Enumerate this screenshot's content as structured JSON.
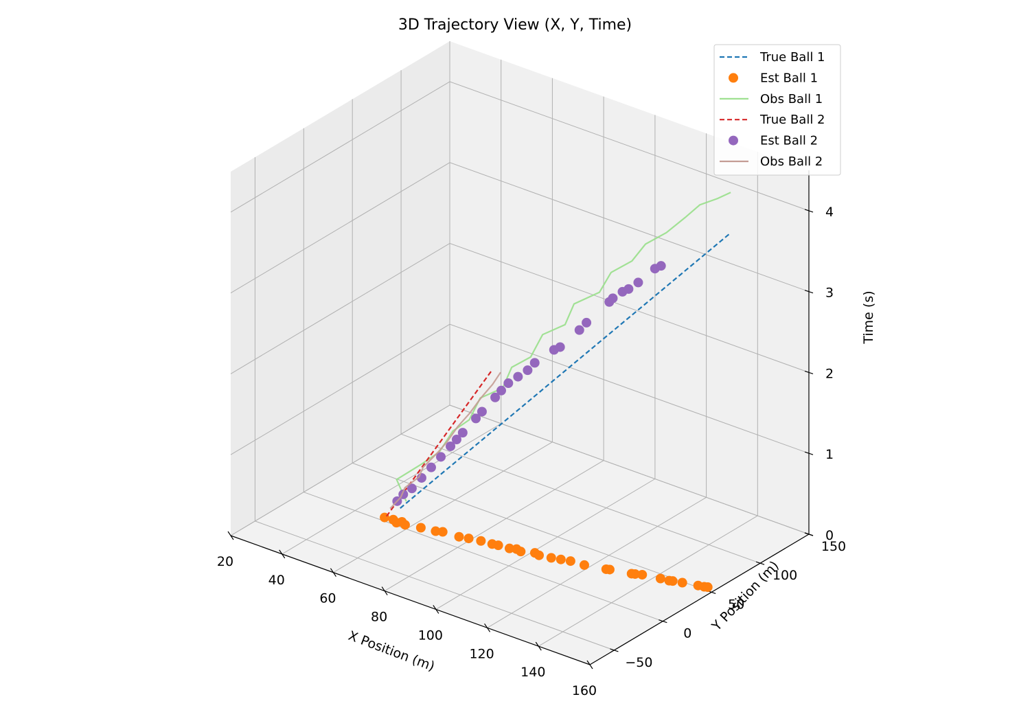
{
  "chart_data": {
    "type": "scatter",
    "title": "3D Trajectory View (X, Y, Time)",
    "xlabel": "X Position (m)",
    "ylabel": "Y Position (m)",
    "zlabel": "Time (s)",
    "xlim": [
      20,
      160
    ],
    "ylim": [
      -75,
      150
    ],
    "zlim": [
      0,
      4.5
    ],
    "xticks": [
      "20",
      "40",
      "60",
      "80",
      "100",
      "120",
      "140",
      "160"
    ],
    "yticks": [
      "−50",
      "0",
      "50",
      "100",
      "150"
    ],
    "zticks": [
      "0",
      "1",
      "2",
      "3",
      "4"
    ],
    "grid": true,
    "legend_position": "top-right",
    "colors": {
      "true_ball_1": "#1f77b4",
      "est_ball_1": "#ff7f0e",
      "obs_ball_1": "#98df8a",
      "true_ball_2": "#d62728",
      "est_ball_2": "#9467bd",
      "obs_ball_2": "#c49c94"
    },
    "series": [
      {
        "name": "True Ball 1",
        "style": "dashed-line",
        "color": "#1f77b4",
        "points": [
          {
            "x": 50.0,
            "y": 20.0,
            "z": 0.0
          },
          {
            "x": 62.5,
            "y": 29.5,
            "z": 0.5
          },
          {
            "x": 75.0,
            "y": 39.0,
            "z": 1.0
          },
          {
            "x": 87.5,
            "y": 48.5,
            "z": 1.5
          },
          {
            "x": 100.0,
            "y": 58.0,
            "z": 2.0
          },
          {
            "x": 112.5,
            "y": 67.5,
            "z": 2.5
          },
          {
            "x": 125.0,
            "y": 77.0,
            "z": 3.0
          },
          {
            "x": 137.5,
            "y": 86.5,
            "z": 3.5
          },
          {
            "x": 150.0,
            "y": 96.0,
            "z": 4.0
          }
        ]
      },
      {
        "name": "Est Ball 1",
        "style": "markers",
        "color": "#ff7f0e",
        "points": [
          {
            "x": 50,
            "y": 4,
            "z": 0
          },
          {
            "x": 53,
            "y": 5,
            "z": 0
          },
          {
            "x": 55,
            "y": 3,
            "z": 0
          },
          {
            "x": 56,
            "y": 6,
            "z": 0
          },
          {
            "x": 58,
            "y": 4,
            "z": 0
          },
          {
            "x": 63,
            "y": 7,
            "z": 0
          },
          {
            "x": 68,
            "y": 9,
            "z": 0
          },
          {
            "x": 70,
            "y": 11,
            "z": 0
          },
          {
            "x": 76,
            "y": 12,
            "z": 0
          },
          {
            "x": 79,
            "y": 14,
            "z": 0
          },
          {
            "x": 83,
            "y": 16,
            "z": 0
          },
          {
            "x": 87,
            "y": 17,
            "z": 0
          },
          {
            "x": 89,
            "y": 18,
            "z": 0
          },
          {
            "x": 93,
            "y": 19,
            "z": 0
          },
          {
            "x": 95,
            "y": 21,
            "z": 0
          },
          {
            "x": 97,
            "y": 20,
            "z": 0
          },
          {
            "x": 101,
            "y": 24,
            "z": 0
          },
          {
            "x": 103,
            "y": 23,
            "z": 0
          },
          {
            "x": 107,
            "y": 25,
            "z": 0
          },
          {
            "x": 110,
            "y": 27,
            "z": 0
          },
          {
            "x": 113,
            "y": 29,
            "z": 0
          },
          {
            "x": 118,
            "y": 30,
            "z": 0
          },
          {
            "x": 125,
            "y": 34,
            "z": 0
          },
          {
            "x": 126,
            "y": 35,
            "z": 0
          },
          {
            "x": 133,
            "y": 39,
            "z": 0
          },
          {
            "x": 134,
            "y": 40,
            "z": 0
          },
          {
            "x": 136,
            "y": 42,
            "z": 0
          },
          {
            "x": 142,
            "y": 45,
            "z": 0
          },
          {
            "x": 145,
            "y": 46,
            "z": 0
          },
          {
            "x": 146,
            "y": 47,
            "z": 0
          },
          {
            "x": 149,
            "y": 49,
            "z": 0
          },
          {
            "x": 154,
            "y": 52,
            "z": 0
          },
          {
            "x": 156,
            "y": 53,
            "z": 0
          },
          {
            "x": 157,
            "y": 54,
            "z": 0
          }
        ]
      },
      {
        "name": "Obs Ball 1",
        "style": "solid-line",
        "color": "#98df8a",
        "points": [
          {
            "x": 52,
            "y": 21,
            "z": 0.1
          },
          {
            "x": 49,
            "y": 19,
            "z": 0.35
          },
          {
            "x": 57,
            "y": 24,
            "z": 0.6
          },
          {
            "x": 63,
            "y": 26,
            "z": 0.8
          },
          {
            "x": 66,
            "y": 32,
            "z": 1.05
          },
          {
            "x": 72,
            "y": 33,
            "z": 1.25
          },
          {
            "x": 74,
            "y": 39,
            "z": 1.5
          },
          {
            "x": 82,
            "y": 41,
            "z": 1.7
          },
          {
            "x": 84,
            "y": 45,
            "z": 1.95
          },
          {
            "x": 91,
            "y": 46,
            "z": 2.15
          },
          {
            "x": 93,
            "y": 53,
            "z": 2.4
          },
          {
            "x": 101,
            "y": 55,
            "z": 2.6
          },
          {
            "x": 103,
            "y": 59,
            "z": 2.85
          },
          {
            "x": 111,
            "y": 64,
            "z": 3.05
          },
          {
            "x": 114,
            "y": 68,
            "z": 3.3
          },
          {
            "x": 121,
            "y": 71,
            "z": 3.5
          },
          {
            "x": 124,
            "y": 77,
            "z": 3.7
          },
          {
            "x": 131,
            "y": 80,
            "z": 3.9
          },
          {
            "x": 136,
            "y": 86,
            "z": 4.1
          },
          {
            "x": 141,
            "y": 88,
            "z": 4.3
          },
          {
            "x": 146,
            "y": 93,
            "z": 4.4
          },
          {
            "x": 150,
            "y": 96,
            "z": 4.5
          }
        ]
      },
      {
        "name": "True Ball 2",
        "style": "dashed-line",
        "color": "#d62728",
        "points": [
          {
            "x": 50,
            "y": 6,
            "z": 0.0
          },
          {
            "x": 58,
            "y": 12,
            "z": 0.5
          },
          {
            "x": 66,
            "y": 18,
            "z": 1.0
          },
          {
            "x": 74,
            "y": 24,
            "z": 1.5
          },
          {
            "x": 82,
            "y": 30,
            "z": 2.0
          }
        ]
      },
      {
        "name": "Est Ball 2",
        "style": "markers",
        "color": "#9467bd",
        "points": [
          {
            "x": 53,
            "y": 9,
            "z": 0.2
          },
          {
            "x": 55,
            "y": 10,
            "z": 0.3
          },
          {
            "x": 58,
            "y": 11,
            "z": 0.4
          },
          {
            "x": 61,
            "y": 13,
            "z": 0.55
          },
          {
            "x": 64,
            "y": 15,
            "z": 0.7
          },
          {
            "x": 67,
            "y": 17,
            "z": 0.85
          },
          {
            "x": 70,
            "y": 19,
            "z": 1.0
          },
          {
            "x": 72,
            "y": 20,
            "z": 1.1
          },
          {
            "x": 74,
            "y": 21,
            "z": 1.2
          },
          {
            "x": 78,
            "y": 24,
            "z": 1.4
          },
          {
            "x": 80,
            "y": 25,
            "z": 1.5
          },
          {
            "x": 84,
            "y": 28,
            "z": 1.7
          },
          {
            "x": 86,
            "y": 29,
            "z": 1.8
          },
          {
            "x": 88,
            "y": 31,
            "z": 1.9
          },
          {
            "x": 91,
            "y": 33,
            "z": 2.0
          },
          {
            "x": 94,
            "y": 35,
            "z": 2.1
          },
          {
            "x": 96,
            "y": 37,
            "z": 2.2
          },
          {
            "x": 102,
            "y": 41,
            "z": 2.4
          },
          {
            "x": 104,
            "y": 42,
            "z": 2.45
          },
          {
            "x": 110,
            "y": 46,
            "z": 2.7
          },
          {
            "x": 112,
            "y": 48,
            "z": 2.8
          },
          {
            "x": 119,
            "y": 53,
            "z": 3.1
          },
          {
            "x": 120,
            "y": 54,
            "z": 3.15
          },
          {
            "x": 123,
            "y": 56,
            "z": 3.25
          },
          {
            "x": 125,
            "y": 57,
            "z": 3.3
          },
          {
            "x": 128,
            "y": 59,
            "z": 3.4
          },
          {
            "x": 133,
            "y": 63,
            "z": 3.6
          },
          {
            "x": 135,
            "y": 64,
            "z": 3.65
          }
        ]
      },
      {
        "name": "Obs Ball 2",
        "style": "solid-line",
        "color": "#c49c94",
        "points": [
          {
            "x": 51,
            "y": 7,
            "z": 0.1
          },
          {
            "x": 54,
            "y": 10,
            "z": 0.25
          },
          {
            "x": 56,
            "y": 9,
            "z": 0.4
          },
          {
            "x": 60,
            "y": 13,
            "z": 0.55
          },
          {
            "x": 62,
            "y": 12,
            "z": 0.7
          },
          {
            "x": 66,
            "y": 17,
            "z": 0.9
          },
          {
            "x": 69,
            "y": 18,
            "z": 1.05
          },
          {
            "x": 72,
            "y": 21,
            "z": 1.25
          },
          {
            "x": 76,
            "y": 23,
            "z": 1.45
          },
          {
            "x": 79,
            "y": 27,
            "z": 1.65
          },
          {
            "x": 83,
            "y": 28,
            "z": 1.85
          },
          {
            "x": 85,
            "y": 31,
            "z": 2.0
          }
        ]
      }
    ]
  }
}
